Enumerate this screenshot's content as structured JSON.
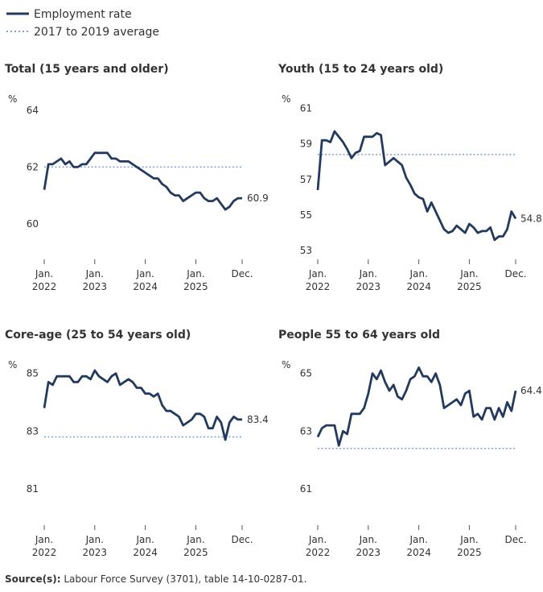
{
  "legend": [
    {
      "name": "Employment rate",
      "color": "#233a5e",
      "style": "solid"
    },
    {
      "name": "2017 to 2019 average",
      "color": "#7f9fd6",
      "style": "dotted"
    }
  ],
  "source": {
    "label": "Source(s):",
    "text": "Labour Force Survey (3701), table 14-10-0287-01."
  },
  "chart_data": [
    {
      "type": "line",
      "title": "Total (15 years and older)",
      "y_label": "%",
      "categories": [
        "Jan. 2022",
        null,
        null,
        null,
        null,
        null,
        null,
        null,
        null,
        null,
        null,
        null,
        "Jan. 2023",
        null,
        null,
        null,
        null,
        null,
        null,
        null,
        null,
        null,
        null,
        null,
        "Jan. 2024",
        null,
        null,
        null,
        null,
        null,
        null,
        null,
        null,
        null,
        null,
        null,
        "Jan. 2025",
        null,
        null,
        null,
        null,
        null,
        null,
        null,
        null,
        null,
        null,
        "Dec."
      ],
      "values": [
        61.2,
        62.1,
        62.1,
        62.2,
        62.3,
        62.1,
        62.2,
        62.0,
        62.0,
        62.1,
        62.1,
        62.3,
        62.5,
        62.5,
        62.5,
        62.5,
        62.3,
        62.3,
        62.2,
        62.2,
        62.2,
        62.1,
        62.0,
        61.9,
        61.8,
        61.7,
        61.6,
        61.6,
        61.4,
        61.3,
        61.1,
        61.0,
        61.0,
        60.8,
        60.9,
        61.0,
        61.1,
        61.1,
        60.9,
        60.8,
        60.8,
        60.9,
        60.7,
        60.5,
        60.6,
        60.8,
        60.9,
        60.9
      ],
      "average": 62.0,
      "ylim": [
        58.8,
        64.2
      ],
      "yticks": [
        60,
        62,
        64
      ]
    },
    {
      "type": "line",
      "title": "Youth (15 to 24 years old)",
      "y_label": "%",
      "categories": [
        "Jan. 2022",
        null,
        null,
        null,
        null,
        null,
        null,
        null,
        null,
        null,
        null,
        null,
        "Jan. 2023",
        null,
        null,
        null,
        null,
        null,
        null,
        null,
        null,
        null,
        null,
        null,
        "Jan. 2024",
        null,
        null,
        null,
        null,
        null,
        null,
        null,
        null,
        null,
        null,
        null,
        "Jan. 2025",
        null,
        null,
        null,
        null,
        null,
        null,
        null,
        null,
        null,
        null,
        "Dec."
      ],
      "values": [
        56.4,
        59.2,
        59.2,
        59.1,
        59.7,
        59.4,
        59.1,
        58.7,
        58.2,
        58.5,
        58.6,
        59.4,
        59.4,
        59.4,
        59.6,
        59.5,
        57.8,
        58.0,
        58.2,
        58.0,
        57.8,
        57.1,
        56.7,
        56.2,
        56.0,
        55.9,
        55.2,
        55.7,
        55.2,
        54.7,
        54.2,
        54.0,
        54.1,
        54.4,
        54.2,
        54.0,
        54.5,
        54.3,
        54.0,
        54.1,
        54.1,
        54.3,
        53.6,
        53.8,
        53.8,
        54.2,
        55.2,
        54.8
      ],
      "average": 58.4,
      "ylim": [
        52.6,
        61.2
      ],
      "yticks": [
        53,
        55,
        57,
        59,
        61
      ]
    },
    {
      "type": "line",
      "title": "Core-age (25 to 54 years old)",
      "y_label": "%",
      "categories": [
        "Jan. 2022",
        null,
        null,
        null,
        null,
        null,
        null,
        null,
        null,
        null,
        null,
        null,
        "Jan. 2023",
        null,
        null,
        null,
        null,
        null,
        null,
        null,
        null,
        null,
        null,
        null,
        "Jan. 2024",
        null,
        null,
        null,
        null,
        null,
        null,
        null,
        null,
        null,
        null,
        null,
        "Jan. 2025",
        null,
        null,
        null,
        null,
        null,
        null,
        null,
        null,
        null,
        null,
        "Dec."
      ],
      "values": [
        83.8,
        84.7,
        84.6,
        84.9,
        84.9,
        84.9,
        84.9,
        84.7,
        84.7,
        84.9,
        84.9,
        84.8,
        85.1,
        84.9,
        84.8,
        84.7,
        84.9,
        85.0,
        84.6,
        84.7,
        84.8,
        84.7,
        84.5,
        84.5,
        84.3,
        84.3,
        84.2,
        84.3,
        83.9,
        83.7,
        83.7,
        83.6,
        83.5,
        83.2,
        83.3,
        83.4,
        83.6,
        83.6,
        83.5,
        83.1,
        83.1,
        83.5,
        83.3,
        82.7,
        83.3,
        83.5,
        83.4,
        83.4
      ],
      "average": 82.8,
      "ylim": [
        79.8,
        85.1
      ],
      "yticks": [
        81,
        83,
        85
      ]
    },
    {
      "type": "line",
      "title": "People 55 to 64 years old",
      "y_label": "%",
      "categories": [
        "Jan. 2022",
        null,
        null,
        null,
        null,
        null,
        null,
        null,
        null,
        null,
        null,
        null,
        "Jan. 2023",
        null,
        null,
        null,
        null,
        null,
        null,
        null,
        null,
        null,
        null,
        null,
        "Jan. 2024",
        null,
        null,
        null,
        null,
        null,
        null,
        null,
        null,
        null,
        null,
        null,
        "Jan. 2025",
        null,
        null,
        null,
        null,
        null,
        null,
        null,
        null,
        null,
        null,
        "Dec."
      ],
      "values": [
        62.8,
        63.1,
        63.2,
        63.2,
        63.2,
        62.5,
        63.0,
        62.9,
        63.6,
        63.6,
        63.6,
        63.8,
        64.3,
        65.0,
        64.8,
        65.1,
        64.7,
        64.4,
        64.6,
        64.2,
        64.1,
        64.4,
        64.8,
        64.9,
        65.2,
        64.9,
        64.9,
        64.7,
        65.0,
        64.6,
        63.8,
        63.9,
        64.0,
        64.1,
        63.9,
        64.3,
        64.4,
        63.5,
        63.6,
        63.4,
        63.8,
        63.8,
        63.4,
        63.8,
        63.5,
        64.0,
        63.7,
        64.4
      ],
      "average": 62.4,
      "ylim": [
        59.8,
        65.1
      ],
      "yticks": [
        61,
        63,
        65
      ]
    }
  ]
}
